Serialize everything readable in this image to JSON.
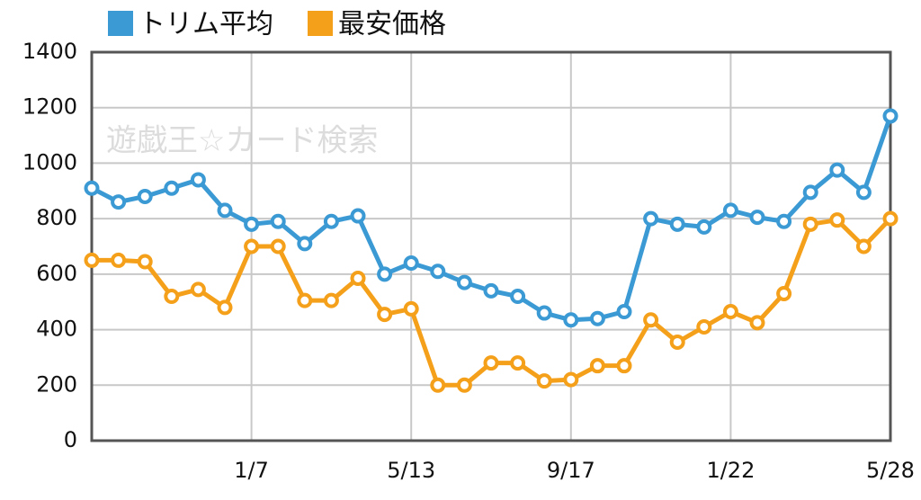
{
  "chart_data": {
    "type": "line",
    "annotation": "遊戯王☆カード検索",
    "categories": [
      null,
      null,
      null,
      null,
      null,
      null,
      "1/7",
      null,
      null,
      null,
      null,
      null,
      "5/13",
      null,
      null,
      null,
      null,
      null,
      "9/17",
      null,
      null,
      null,
      null,
      null,
      "1/22",
      null,
      null,
      null,
      null,
      null,
      "5/28"
    ],
    "series": [
      {
        "name": "トリム平均",
        "color": "#3b9ad4",
        "values": [
          910,
          860,
          880,
          910,
          940,
          830,
          780,
          790,
          710,
          790,
          810,
          600,
          640,
          610,
          570,
          540,
          520,
          460,
          435,
          440,
          465,
          800,
          780,
          770,
          830,
          805,
          790,
          895,
          975,
          895,
          1170
        ]
      },
      {
        "name": "最安価格",
        "color": "#f5a01a",
        "values": [
          650,
          650,
          645,
          520,
          545,
          480,
          700,
          700,
          505,
          505,
          585,
          455,
          475,
          200,
          200,
          280,
          280,
          215,
          220,
          270,
          270,
          435,
          355,
          410,
          465,
          425,
          530,
          780,
          795,
          700,
          800
        ]
      }
    ],
    "ylim": [
      0,
      1400
    ],
    "yticks": [
      0,
      200,
      400,
      600,
      800,
      1000,
      1200,
      1400
    ],
    "grid": true
  }
}
